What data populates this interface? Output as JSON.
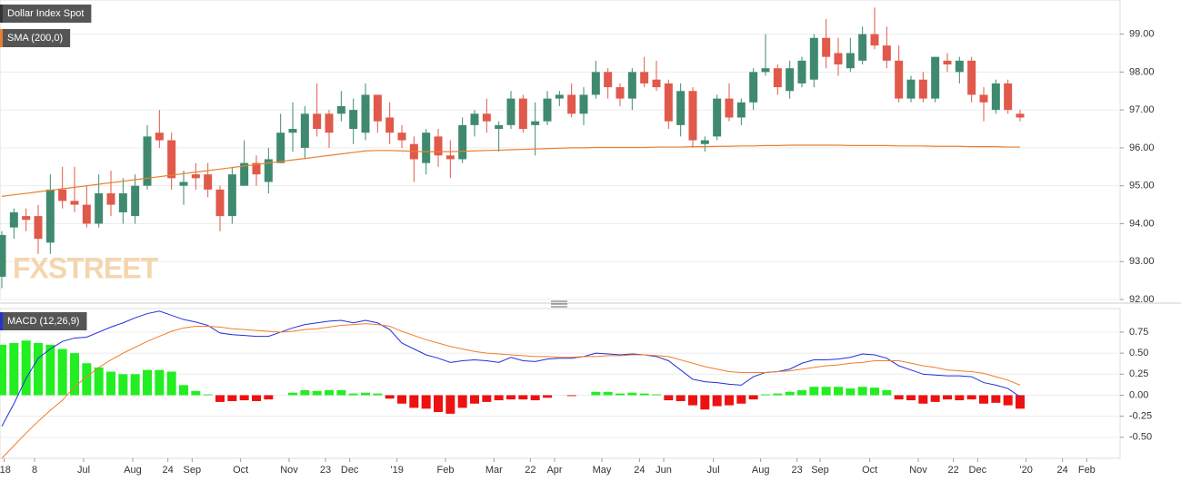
{
  "chart_data": [
    {
      "type": "candlestick",
      "title": "Dollar Index Spot",
      "watermark": "FXSTREET",
      "up_color": "#3f8a6f",
      "down_color": "#e0594a",
      "grid": true,
      "x": [
        0,
        1,
        2,
        3,
        4,
        5,
        6,
        7,
        8,
        9,
        10,
        11,
        12,
        13,
        14,
        15,
        16,
        17,
        18,
        19,
        20,
        21,
        22,
        23,
        24,
        25,
        26,
        27,
        28,
        29,
        30,
        31,
        32,
        33,
        34,
        35,
        36,
        37,
        38,
        39,
        40,
        41,
        42,
        43,
        44,
        45,
        46,
        47,
        48,
        49,
        50,
        51,
        52,
        53,
        54,
        55,
        56,
        57,
        58,
        59,
        60,
        61,
        62,
        63,
        64,
        65,
        66,
        67,
        68,
        69,
        70,
        71,
        72,
        73,
        74,
        75,
        76,
        77,
        78,
        79,
        80,
        81,
        82,
        83,
        84
      ],
      "open": [
        92.6,
        93.9,
        94.2,
        94.2,
        93.5,
        94.9,
        94.6,
        94.5,
        94.0,
        94.8,
        94.3,
        94.2,
        95.0,
        96.4,
        96.2,
        95.0,
        95.3,
        95.3,
        94.9,
        94.2,
        95.0,
        95.6,
        95.1,
        95.6,
        96.4,
        96.0,
        96.9,
        96.9,
        96.9,
        96.5,
        96.4,
        97.4,
        96.8,
        96.4,
        96.1,
        95.6,
        96.3,
        95.8,
        95.7,
        96.6,
        96.9,
        96.5,
        96.6,
        97.3,
        96.6,
        96.7,
        97.3,
        97.4,
        96.9,
        97.4,
        98.0,
        97.6,
        97.3,
        98.0,
        97.8,
        97.7,
        96.6,
        97.5,
        96.1,
        96.3,
        97.3,
        96.8,
        97.2,
        98.0,
        98.1,
        97.5,
        97.7,
        97.8,
        98.9,
        98.5,
        98.1,
        98.3,
        99.0,
        98.7,
        98.3,
        97.3,
        97.8,
        97.3,
        98.3,
        98.0,
        98.3,
        97.4,
        97.0,
        97.7,
        96.9
      ],
      "high": [
        93.8,
        94.4,
        94.4,
        94.5,
        95.3,
        95.5,
        95.5,
        95.0,
        95.3,
        95.4,
        95.2,
        95.3,
        96.6,
        97.0,
        96.4,
        95.4,
        95.6,
        95.6,
        95.0,
        95.5,
        96.2,
        95.8,
        96.0,
        96.9,
        97.2,
        97.1,
        97.7,
        97.0,
        97.5,
        97.3,
        97.7,
        97.4,
        97.2,
        96.6,
        96.3,
        96.5,
        96.5,
        96.2,
        96.8,
        97.0,
        97.3,
        96.7,
        97.5,
        97.4,
        97.2,
        97.5,
        97.5,
        97.7,
        97.6,
        98.3,
        98.1,
        97.7,
        98.1,
        98.4,
        98.3,
        97.8,
        97.7,
        97.6,
        96.3,
        97.4,
        97.7,
        97.3,
        98.1,
        99.0,
        98.2,
        98.3,
        98.4,
        99.0,
        99.4,
        98.9,
        98.9,
        99.2,
        99.7,
        99.2,
        98.7,
        97.9,
        98.0,
        98.4,
        98.5,
        98.4,
        98.4,
        97.6,
        97.8,
        97.8,
        97.0
      ],
      "low": [
        92.3,
        93.6,
        93.8,
        93.2,
        93.2,
        94.4,
        94.3,
        93.9,
        93.9,
        94.2,
        94.0,
        94.0,
        94.9,
        96.0,
        94.9,
        94.5,
        94.9,
        94.7,
        93.8,
        94.0,
        95.0,
        95.0,
        94.8,
        95.6,
        95.9,
        95.7,
        96.3,
        96.0,
        96.7,
        96.1,
        96.2,
        96.4,
        96.1,
        96.0,
        95.1,
        95.3,
        95.5,
        95.2,
        95.6,
        96.3,
        96.4,
        95.9,
        96.5,
        96.4,
        95.8,
        96.6,
        97.1,
        96.8,
        96.6,
        97.3,
        97.3,
        97.1,
        97.0,
        97.6,
        97.5,
        96.5,
        96.3,
        96.0,
        95.9,
        96.2,
        96.7,
        96.6,
        97.0,
        97.9,
        97.4,
        97.3,
        97.6,
        97.6,
        98.1,
        97.9,
        98.0,
        98.2,
        98.6,
        98.1,
        97.2,
        97.2,
        97.2,
        97.2,
        98.0,
        97.7,
        97.2,
        96.7,
        96.9,
        96.9,
        96.7
      ],
      "close": [
        93.7,
        94.3,
        94.1,
        93.6,
        94.9,
        94.6,
        94.5,
        94.0,
        94.8,
        94.5,
        94.8,
        95.0,
        96.3,
        96.2,
        95.2,
        95.1,
        95.2,
        94.9,
        94.2,
        95.3,
        95.6,
        95.3,
        95.7,
        96.4,
        96.5,
        96.9,
        96.5,
        96.4,
        97.1,
        97.0,
        97.4,
        96.7,
        96.4,
        96.2,
        95.7,
        96.4,
        95.8,
        95.7,
        96.6,
        96.9,
        96.7,
        96.6,
        97.3,
        96.5,
        96.7,
        97.3,
        97.4,
        96.9,
        97.4,
        98.0,
        97.6,
        97.3,
        98.0,
        97.7,
        97.6,
        96.7,
        97.5,
        96.2,
        96.2,
        97.3,
        96.8,
        97.2,
        98.0,
        98.1,
        97.6,
        98.1,
        98.3,
        98.9,
        98.4,
        98.2,
        98.5,
        99.0,
        98.7,
        98.3,
        97.3,
        97.8,
        97.3,
        98.4,
        98.2,
        98.3,
        97.4,
        97.2,
        97.7,
        97.0,
        96.8
      ],
      "series": [
        {
          "name": "SMA (200,0)",
          "color": "#e8802e",
          "values": [
            94.72,
            94.76,
            94.8,
            94.84,
            94.88,
            94.92,
            94.96,
            95.0,
            95.04,
            95.08,
            95.12,
            95.16,
            95.2,
            95.24,
            95.28,
            95.32,
            95.36,
            95.4,
            95.44,
            95.48,
            95.52,
            95.56,
            95.6,
            95.64,
            95.68,
            95.72,
            95.76,
            95.8,
            95.84,
            95.88,
            95.92,
            95.93,
            95.93,
            95.92,
            95.91,
            95.9,
            95.9,
            95.9,
            95.91,
            95.92,
            95.93,
            95.94,
            95.95,
            95.96,
            95.97,
            95.98,
            95.99,
            96.0,
            96.0,
            96.01,
            96.01,
            96.01,
            96.01,
            96.01,
            96.02,
            96.02,
            96.02,
            96.03,
            96.03,
            96.04,
            96.04,
            96.05,
            96.05,
            96.06,
            96.06,
            96.07,
            96.07,
            96.07,
            96.07,
            96.07,
            96.06,
            96.06,
            96.06,
            96.06,
            96.05,
            96.05,
            96.05,
            96.04,
            96.04,
            96.04,
            96.03,
            96.03,
            96.03,
            96.02,
            96.02
          ]
        }
      ],
      "xlim": [
        -0.15,
        92.25
      ],
      "ylim": [
        92.0,
        99.9
      ],
      "yticks": [
        {
          "value": 92,
          "label": "92.00"
        },
        {
          "value": 93,
          "label": "93.00"
        },
        {
          "value": 94,
          "label": "94.00"
        },
        {
          "value": 95,
          "label": "95.00"
        },
        {
          "value": 96,
          "label": "96.00"
        },
        {
          "value": 97,
          "label": "97.00"
        },
        {
          "value": 98,
          "label": "98.00"
        },
        {
          "value": 99,
          "label": "99.00"
        }
      ]
    },
    {
      "type": "macd",
      "title": "MACD (12,26,9)",
      "grid": true,
      "title_color": "#2233cc",
      "x": [
        0,
        1,
        2,
        3,
        4,
        5,
        6,
        7,
        8,
        9,
        10,
        11,
        12,
        13,
        14,
        15,
        16,
        17,
        18,
        19,
        20,
        21,
        22,
        23,
        24,
        25,
        26,
        27,
        28,
        29,
        30,
        31,
        32,
        33,
        34,
        35,
        36,
        37,
        38,
        39,
        40,
        41,
        42,
        43,
        44,
        45,
        46,
        47,
        48,
        49,
        50,
        51,
        52,
        53,
        54,
        55,
        56,
        57,
        58,
        59,
        60,
        61,
        62,
        63,
        64,
        65,
        66,
        67,
        68,
        69,
        70,
        71,
        72,
        73,
        74,
        75,
        76,
        77,
        78,
        79,
        80,
        81,
        82,
        83,
        84
      ],
      "histogram": {
        "positive_color": "#22ee22",
        "negative_color": "#ee1111",
        "values": [
          0.6,
          0.62,
          0.65,
          0.62,
          0.6,
          0.55,
          0.5,
          0.38,
          0.33,
          0.28,
          0.25,
          0.25,
          0.3,
          0.3,
          0.28,
          0.12,
          0.05,
          0.01,
          -0.08,
          -0.07,
          -0.06,
          -0.07,
          -0.05,
          0.0,
          0.03,
          0.06,
          0.05,
          0.06,
          0.06,
          0.02,
          0.03,
          0.02,
          -0.04,
          -0.1,
          -0.15,
          -0.16,
          -0.2,
          -0.22,
          -0.15,
          -0.1,
          -0.08,
          -0.06,
          -0.05,
          -0.05,
          -0.06,
          -0.03,
          0.0,
          -0.01,
          0.0,
          0.04,
          0.04,
          0.02,
          0.03,
          0.02,
          0.01,
          -0.06,
          -0.07,
          -0.12,
          -0.17,
          -0.13,
          -0.12,
          -0.1,
          -0.05,
          0.01,
          0.02,
          0.04,
          0.06,
          0.1,
          0.1,
          0.1,
          0.08,
          0.1,
          0.09,
          0.06,
          -0.05,
          -0.06,
          -0.1,
          -0.08,
          -0.05,
          -0.06,
          -0.05,
          -0.1,
          -0.09,
          -0.12,
          -0.16
        ]
      },
      "series": [
        {
          "color": "#2030d8",
          "values": [
            -0.37,
            -0.1,
            0.2,
            0.44,
            0.55,
            0.64,
            0.68,
            0.69,
            0.75,
            0.81,
            0.86,
            0.92,
            0.97,
            1.0,
            0.95,
            0.9,
            0.87,
            0.83,
            0.74,
            0.72,
            0.71,
            0.7,
            0.7,
            0.75,
            0.8,
            0.84,
            0.86,
            0.88,
            0.89,
            0.86,
            0.89,
            0.86,
            0.78,
            0.62,
            0.55,
            0.48,
            0.44,
            0.39,
            0.41,
            0.42,
            0.41,
            0.39,
            0.45,
            0.41,
            0.4,
            0.43,
            0.44,
            0.44,
            0.46,
            0.5,
            0.49,
            0.48,
            0.49,
            0.48,
            0.46,
            0.41,
            0.3,
            0.19,
            0.16,
            0.15,
            0.13,
            0.12,
            0.22,
            0.27,
            0.28,
            0.31,
            0.38,
            0.42,
            0.42,
            0.43,
            0.45,
            0.49,
            0.48,
            0.44,
            0.35,
            0.3,
            0.25,
            0.24,
            0.23,
            0.23,
            0.22,
            0.15,
            0.12,
            0.08,
            -0.02
          ]
        },
        {
          "color": "#f07d2a",
          "values": [
            -0.75,
            -0.6,
            -0.45,
            -0.31,
            -0.18,
            -0.06,
            0.1,
            0.22,
            0.33,
            0.42,
            0.5,
            0.57,
            0.64,
            0.7,
            0.76,
            0.8,
            0.82,
            0.82,
            0.81,
            0.79,
            0.78,
            0.77,
            0.76,
            0.75,
            0.76,
            0.78,
            0.79,
            0.81,
            0.83,
            0.84,
            0.85,
            0.84,
            0.82,
            0.76,
            0.71,
            0.66,
            0.62,
            0.58,
            0.55,
            0.52,
            0.5,
            0.49,
            0.48,
            0.47,
            0.46,
            0.46,
            0.45,
            0.45,
            0.46,
            0.46,
            0.47,
            0.47,
            0.48,
            0.48,
            0.47,
            0.46,
            0.42,
            0.38,
            0.34,
            0.31,
            0.28,
            0.27,
            0.27,
            0.27,
            0.28,
            0.29,
            0.31,
            0.33,
            0.35,
            0.36,
            0.38,
            0.39,
            0.41,
            0.41,
            0.41,
            0.38,
            0.35,
            0.33,
            0.3,
            0.29,
            0.28,
            0.26,
            0.22,
            0.18,
            0.12
          ]
        }
      ],
      "xlim": [
        -0.15,
        92.25
      ],
      "ylim": [
        -0.75,
        1.03
      ],
      "yticks": [
        -0.25,
        {
          "value": -0.5,
          "label": "-0.50"
        },
        {
          "value": 0,
          "label": "0.00"
        },
        {
          "value": 0.25,
          "label": "0.25"
        },
        {
          "value": 0.5,
          "label": "0.50"
        },
        0.75
      ],
      "xticks": [
        {
          "value": 0.2,
          "label": "'18"
        },
        {
          "value": 2.7,
          "label": "8"
        },
        {
          "value": 6.75,
          "label": "Jul"
        },
        {
          "value": 10.8,
          "label": "Aug"
        },
        {
          "value": 13.7,
          "label": "24"
        },
        {
          "value": 15.7,
          "label": "Sep"
        },
        {
          "value": 19.7,
          "label": "Oct"
        },
        {
          "value": 23.7,
          "label": "Nov"
        },
        {
          "value": 26.7,
          "label": "23"
        },
        {
          "value": 28.7,
          "label": "Dec"
        },
        {
          "value": 32.6,
          "label": "'19"
        },
        {
          "value": 36.6,
          "label": "Feb"
        },
        {
          "value": 40.6,
          "label": "Mar"
        },
        {
          "value": 43.6,
          "label": "22"
        },
        {
          "value": 45.6,
          "label": "Apr"
        },
        {
          "value": 49.5,
          "label": "May"
        },
        {
          "value": 52.6,
          "label": "24"
        },
        {
          "value": 54.6,
          "label": "Jun"
        },
        {
          "value": 58.7,
          "label": "Jul"
        },
        {
          "value": 62.6,
          "label": "Aug"
        },
        {
          "value": 65.6,
          "label": "23"
        },
        {
          "value": 67.5,
          "label": "Sep"
        },
        {
          "value": 71.6,
          "label": "Oct"
        },
        {
          "value": 75.6,
          "label": "Nov"
        },
        {
          "value": 78.5,
          "label": "22"
        },
        {
          "value": 80.5,
          "label": "Dec"
        },
        {
          "value": 84.5,
          "label": "'20"
        },
        {
          "value": 87.5,
          "label": "24"
        },
        {
          "value": 89.5,
          "label": "Feb"
        }
      ]
    }
  ]
}
